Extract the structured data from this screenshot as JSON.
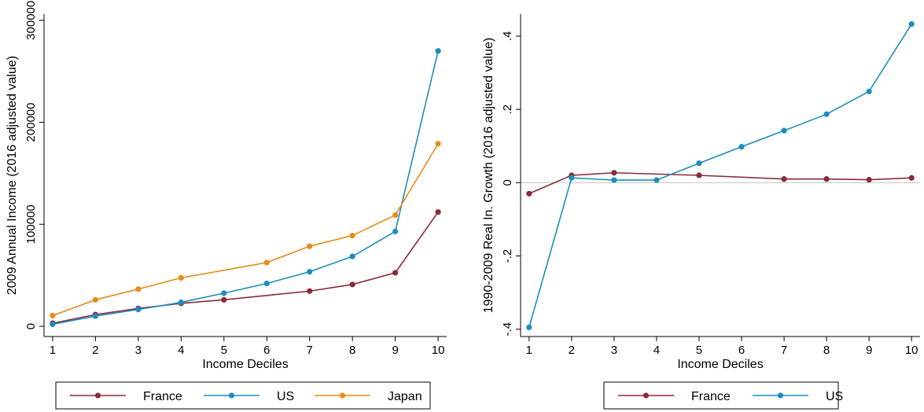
{
  "chart_data": [
    {
      "type": "line",
      "xlabel": "Income Deciles",
      "ylabel": "2009 Annual Income (2016 adjusted value)",
      "x": [
        1,
        2,
        3,
        4,
        5,
        6,
        7,
        8,
        9,
        10
      ],
      "xticks": [
        "1",
        "2",
        "3",
        "4",
        "5",
        "6",
        "7",
        "8",
        "9",
        "10"
      ],
      "xlim": [
        0.8,
        10.2
      ],
      "ylim": [
        -10000,
        306000
      ],
      "yticks": [
        0,
        100000,
        200000,
        300000
      ],
      "ytick_labels": [
        "0",
        "100000",
        "200000",
        "300000"
      ],
      "grid": false,
      "legend_position": "bottom",
      "series": [
        {
          "name": "France",
          "color": "#8b2b3a",
          "values": [
            3000,
            11500,
            17500,
            22500,
            26000,
            null,
            34500,
            41000,
            52500,
            112000
          ]
        },
        {
          "name": "US",
          "color": "#1d8dbd",
          "values": [
            2000,
            10000,
            16500,
            23500,
            32500,
            42000,
            53500,
            68500,
            93000,
            270000
          ]
        },
        {
          "name": "Japan",
          "color": "#e88c1b",
          "values": [
            10500,
            26000,
            36500,
            47500,
            null,
            62500,
            78500,
            89000,
            109000,
            179000
          ]
        }
      ]
    },
    {
      "type": "line",
      "xlabel": "Income Deciles",
      "ylabel": "1990-2009 Real In. Growth (2016 adjusted value)",
      "x": [
        1,
        2,
        3,
        4,
        5,
        6,
        7,
        8,
        9,
        10
      ],
      "xticks": [
        "1",
        "2",
        "3",
        "4",
        "5",
        "6",
        "7",
        "8",
        "9",
        "10"
      ],
      "xlim": [
        0.8,
        10.2
      ],
      "ylim": [
        -0.42,
        0.46
      ],
      "yticks": [
        -0.4,
        -0.2,
        0,
        0.2,
        0.4
      ],
      "ytick_labels": [
        "-.4",
        "-.2",
        "0",
        ".2",
        ".4"
      ],
      "zero_line": true,
      "grid": false,
      "legend_position": "bottom",
      "series": [
        {
          "name": "France",
          "color": "#8b2b3a",
          "values": [
            -0.03,
            0.02,
            0.027,
            null,
            0.02,
            null,
            0.01,
            0.01,
            0.008,
            0.013
          ]
        },
        {
          "name": "US",
          "color": "#1d8dbd",
          "values": [
            -0.395,
            0.013,
            0.007,
            0.007,
            0.053,
            0.098,
            0.142,
            0.187,
            0.249,
            0.433
          ]
        }
      ]
    }
  ]
}
